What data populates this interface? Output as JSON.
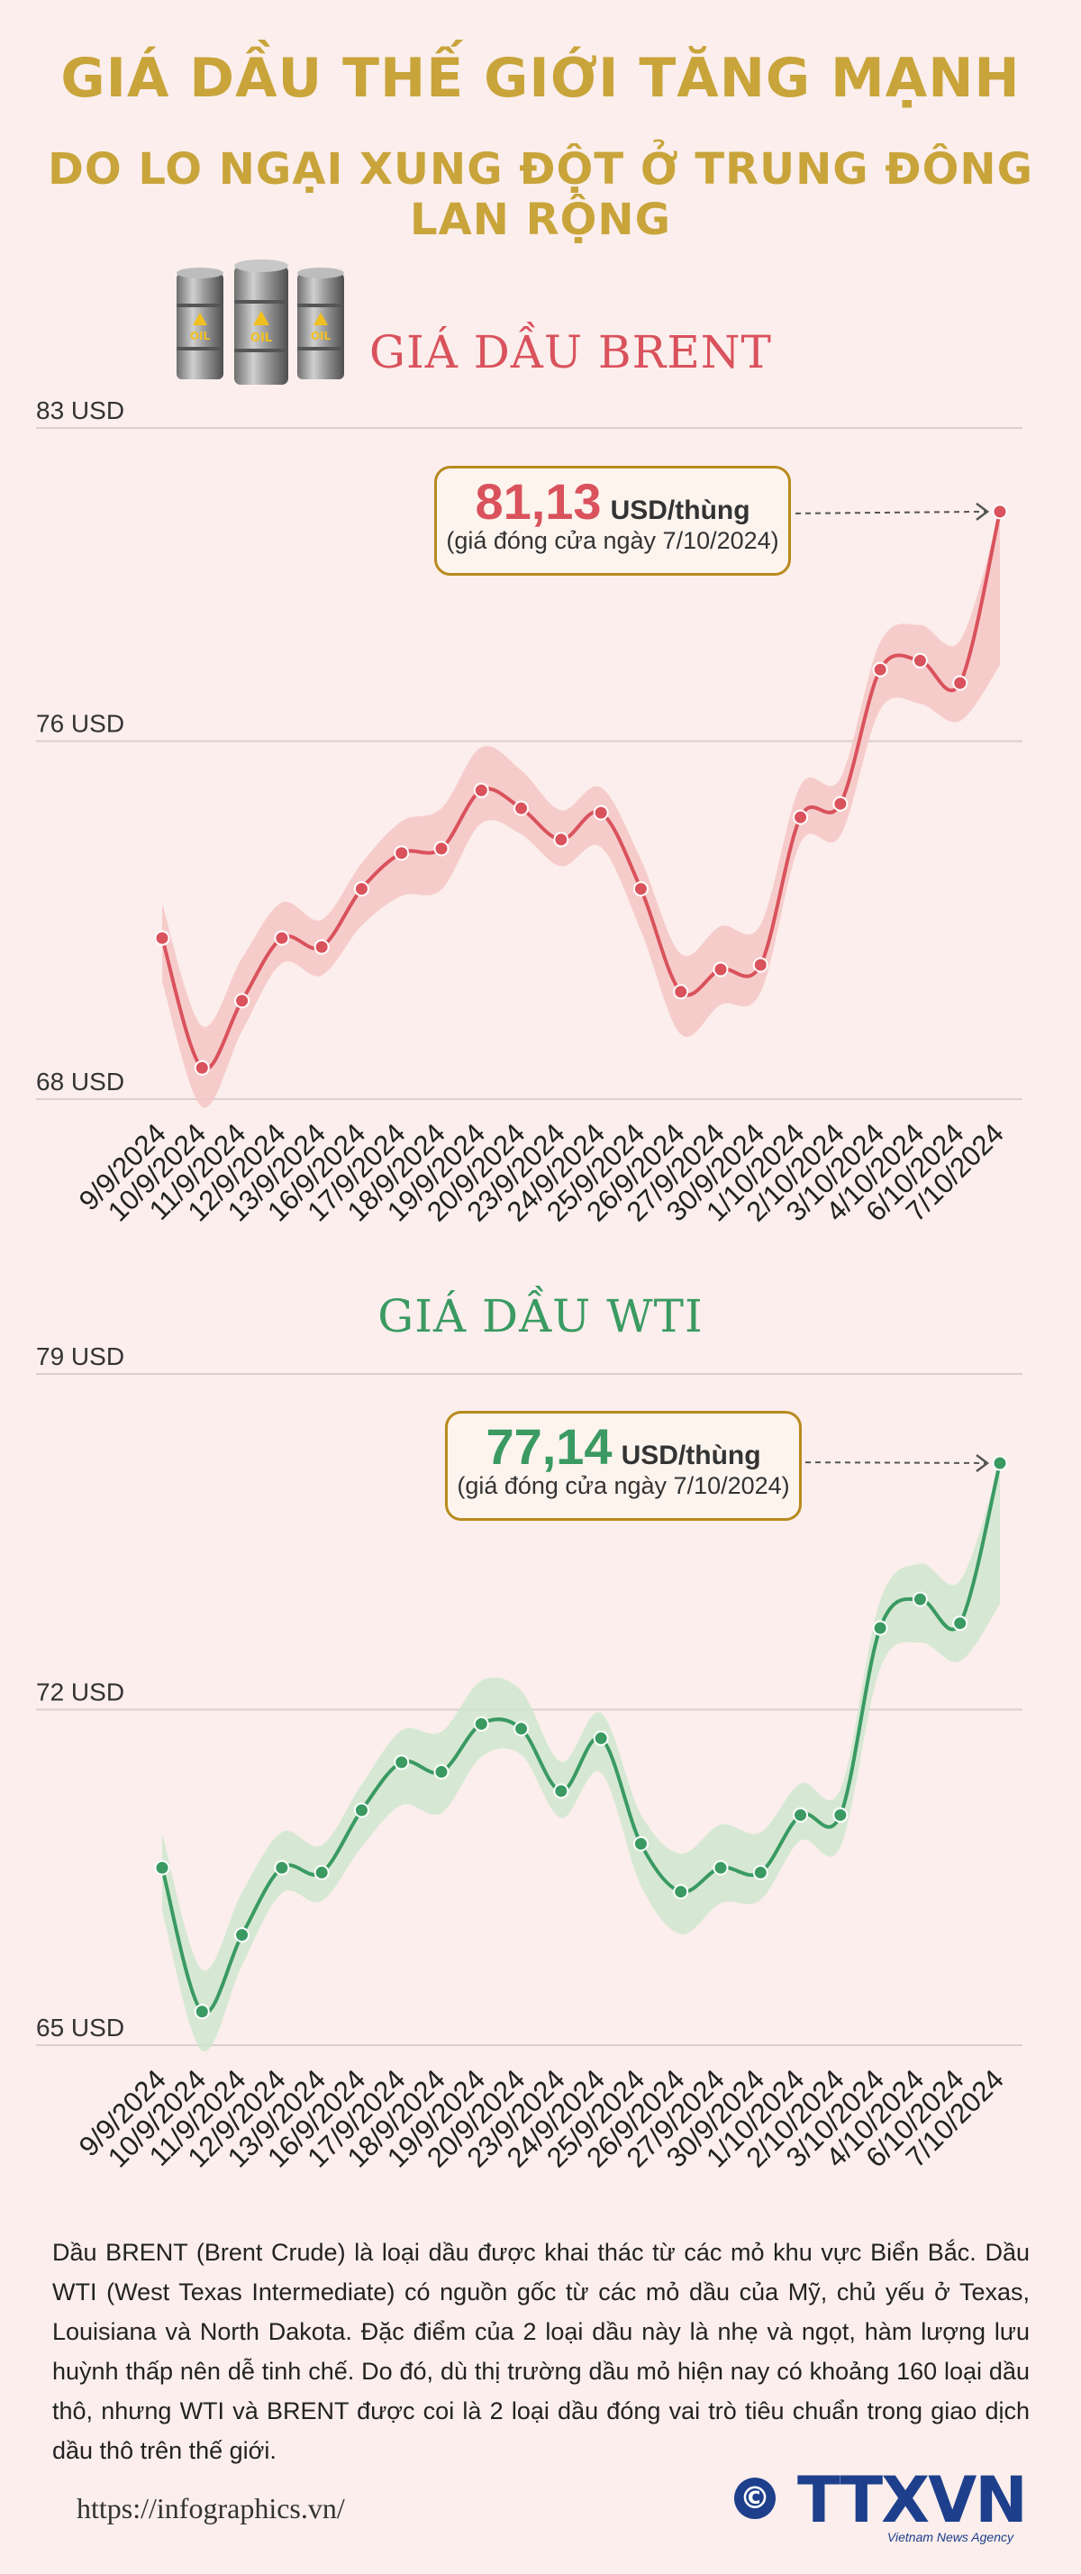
{
  "header": {
    "title_line1": "GIÁ DẦU THẾ GIỚI TĂNG MẠNH",
    "title_line2": "DO LO NGẠI XUNG ĐỘT Ở TRUNG ĐÔNG LAN RỘNG"
  },
  "icons": {
    "barrels": "oil-barrels-icon",
    "barrel_text": "OIL"
  },
  "colors": {
    "title": "#c8a43a",
    "brent": "#d9525c",
    "brent_band": "#f5c5c6",
    "wti": "#3a9a62",
    "wti_band": "#cfe6cf",
    "callout_border": "#b88a1e",
    "logo": "#1d3f8c"
  },
  "brent": {
    "title": "GIÁ DẦU BRENT",
    "callout_value": "81,13",
    "callout_unit": "USD/thùng",
    "callout_note": "(giá đóng cửa ngày 7/10/2024)"
  },
  "wti": {
    "title": "GIÁ DẦU WTI",
    "callout_value": "77,14",
    "callout_unit": "USD/thùng",
    "callout_note": "(giá đóng cửa ngày 7/10/2024)"
  },
  "chart_data": [
    {
      "type": "line",
      "title": "GIÁ DẦU BRENT",
      "categories": [
        "9/9/2024",
        "10/9/2024",
        "11/9/2024",
        "12/9/2024",
        "13/9/2024",
        "16/9/2024",
        "17/9/2024",
        "18/9/2024",
        "19/9/2024",
        "20/9/2024",
        "23/9/2024",
        "24/9/2024",
        "25/9/2024",
        "26/9/2024",
        "27/9/2024",
        "30/9/2024",
        "1/10/2024",
        "2/10/2024",
        "3/10/2024",
        "4/10/2024",
        "6/10/2024",
        "7/10/2024"
      ],
      "values": [
        71.6,
        68.7,
        70.2,
        71.6,
        71.4,
        72.7,
        73.5,
        73.6,
        74.9,
        74.5,
        73.8,
        74.4,
        72.7,
        70.4,
        70.9,
        71.0,
        74.3,
        74.6,
        77.6,
        77.8,
        77.3,
        81.13
      ],
      "y_tick_labels": [
        "83 USD",
        "76 USD",
        "68 USD"
      ],
      "ylim": [
        68,
        83
      ],
      "grid": true,
      "band": true
    },
    {
      "type": "line",
      "title": "GIÁ DẦU WTI",
      "categories": [
        "9/9/2024",
        "10/9/2024",
        "11/9/2024",
        "12/9/2024",
        "13/9/2024",
        "16/9/2024",
        "17/9/2024",
        "18/9/2024",
        "19/9/2024",
        "20/9/2024",
        "23/9/2024",
        "24/9/2024",
        "25/9/2024",
        "26/9/2024",
        "27/9/2024",
        "30/9/2024",
        "1/10/2024",
        "2/10/2024",
        "3/10/2024",
        "4/10/2024",
        "6/10/2024",
        "7/10/2024"
      ],
      "values": [
        68.7,
        65.7,
        67.3,
        68.7,
        68.6,
        69.9,
        70.9,
        70.7,
        71.7,
        71.6,
        70.3,
        71.4,
        69.2,
        68.2,
        68.7,
        68.6,
        69.8,
        69.8,
        73.7,
        74.3,
        73.8,
        77.14
      ],
      "y_tick_labels": [
        "79 USD",
        "72 USD",
        "65 USD"
      ],
      "ylim": [
        65,
        79
      ],
      "grid": true,
      "band": true
    }
  ],
  "footer": {
    "description": "Dầu BRENT (Brent Crude) là loại dầu được khai thác từ các mỏ khu vực Biển Bắc. Dầu WTI (West Texas Intermediate) có nguồn gốc từ các mỏ dầu của Mỹ, chủ yếu ở Texas, Louisiana và North Dakota. Đặc điểm của 2 loại dầu này là nhẹ và ngọt, hàm lượng lưu huỳnh thấp nên dễ tinh chế. Do đó, dù thị trường dầu mỏ hiện nay có khoảng 160 loại dầu thô, nhưng WTI và BRENT được coi là 2 loại dầu đóng vai trò tiêu chuẩn trong giao dịch dầu thô trên thế giới.",
    "url": "https://infographics.vn/",
    "copyright_symbol": "©",
    "logo_text": "TTXVN",
    "logo_subtitle": "Vietnam News Agency"
  }
}
